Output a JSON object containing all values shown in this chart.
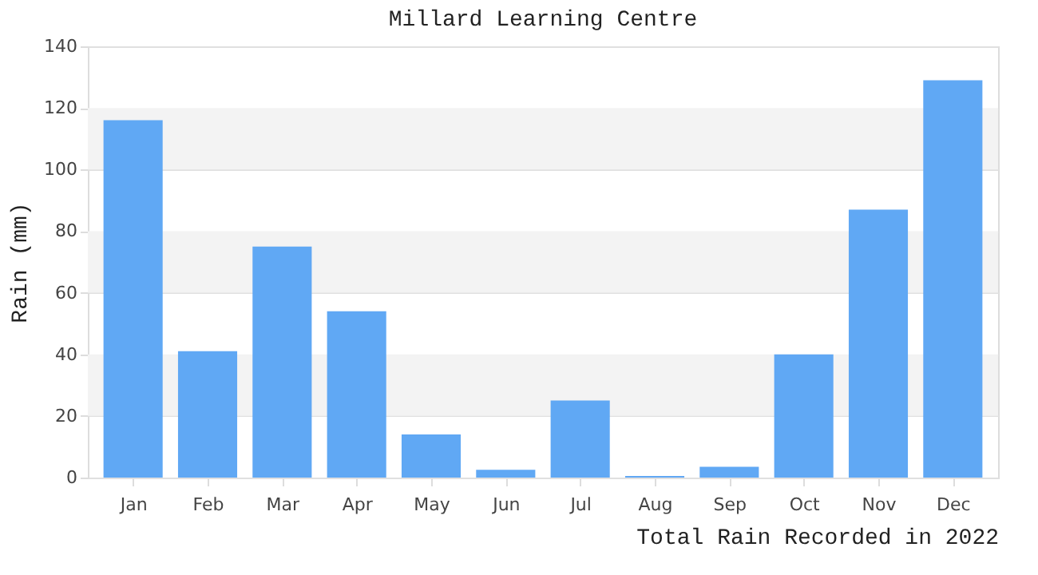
{
  "chart_data": {
    "type": "bar",
    "title": "Millard Learning Centre",
    "xlabel": "Total Rain Recorded in 2022",
    "ylabel": "Rain (mm)",
    "categories": [
      "Jan",
      "Feb",
      "Mar",
      "Apr",
      "May",
      "Jun",
      "Jul",
      "Aug",
      "Sep",
      "Oct",
      "Nov",
      "Dec"
    ],
    "values": [
      116,
      41,
      75,
      54,
      14,
      2.5,
      25,
      0.5,
      3.5,
      40,
      87,
      129
    ],
    "color": "#60a8f4",
    "ylim": [
      0,
      140
    ],
    "yticks": [
      0,
      20,
      40,
      60,
      80,
      100,
      120,
      140
    ],
    "grid": true,
    "bands": [
      {
        "axis": "y",
        "from": 20,
        "to": 40,
        "color": "#f3f3f3"
      },
      {
        "axis": "y",
        "from": 60,
        "to": 80,
        "color": "#f3f3f3"
      },
      {
        "axis": "y",
        "from": 100,
        "to": 120,
        "color": "#f3f3f3"
      }
    ]
  }
}
